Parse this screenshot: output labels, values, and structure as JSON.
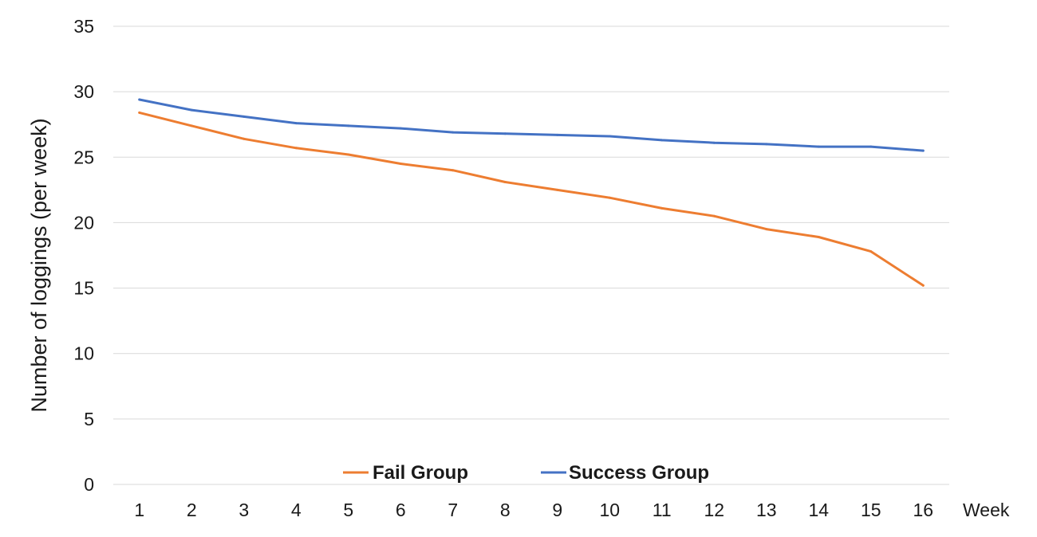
{
  "chart_data": {
    "type": "line",
    "title": "",
    "xlabel": "Week",
    "ylabel": "Number of loggings (per week)",
    "categories": [
      "1",
      "2",
      "3",
      "4",
      "5",
      "6",
      "7",
      "8",
      "9",
      "10",
      "11",
      "12",
      "13",
      "14",
      "15",
      "16"
    ],
    "ylim": [
      0,
      35
    ],
    "yticks": [
      "0",
      "5",
      "10",
      "15",
      "20",
      "25",
      "30",
      "35"
    ],
    "grid": true,
    "legend_position": "bottom-center",
    "series": [
      {
        "name": "Fail Group",
        "color": "#ED7D31",
        "values": [
          28.4,
          27.4,
          26.4,
          25.7,
          25.2,
          24.5,
          24.0,
          23.1,
          22.5,
          21.9,
          21.1,
          20.5,
          19.5,
          18.9,
          17.8,
          15.2
        ]
      },
      {
        "name": "Success Group",
        "color": "#4472C4",
        "values": [
          29.4,
          28.6,
          28.1,
          27.6,
          27.4,
          27.2,
          26.9,
          26.8,
          26.7,
          26.6,
          26.3,
          26.1,
          26.0,
          25.8,
          25.8,
          25.5
        ]
      }
    ]
  }
}
